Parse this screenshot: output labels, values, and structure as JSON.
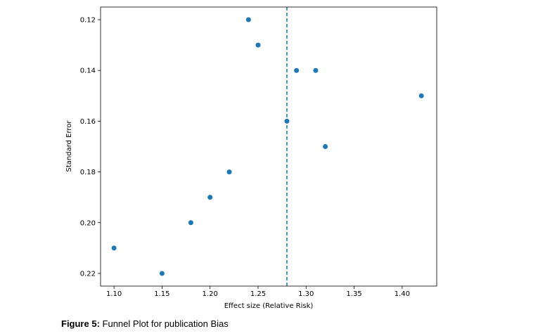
{
  "chart_data": {
    "type": "scatter",
    "xlabel": "Effect size (Relative Risk)",
    "ylabel": "Standard Error",
    "x": [
      1.24,
      1.25,
      1.29,
      1.31,
      1.42,
      1.28,
      1.32,
      1.22,
      1.2,
      1.18,
      1.1,
      1.15
    ],
    "values": [
      0.12,
      0.13,
      0.14,
      0.14,
      0.15,
      0.16,
      0.17,
      0.18,
      0.19,
      0.2,
      0.21,
      0.22
    ],
    "color": "#1f77b4",
    "xlim": [
      1.086,
      1.436
    ],
    "ylim": [
      0.225,
      0.115
    ],
    "xticks": [
      {
        "value": 1.1,
        "label": "1.10"
      },
      1.15,
      {
        "value": 1.2,
        "label": "1.20"
      },
      1.25,
      {
        "value": 1.3,
        "label": "1.30"
      },
      1.35,
      {
        "value": 1.4,
        "label": "1.40"
      }
    ],
    "yticks": [
      0.12,
      0.14,
      0.16,
      0.18,
      {
        "value": 0.2,
        "label": "0.20"
      },
      0.22
    ],
    "vline": 1.28
  },
  "caption": {
    "label": "Figure 5:",
    "text": "Funnel Plot for publication Bias"
  }
}
